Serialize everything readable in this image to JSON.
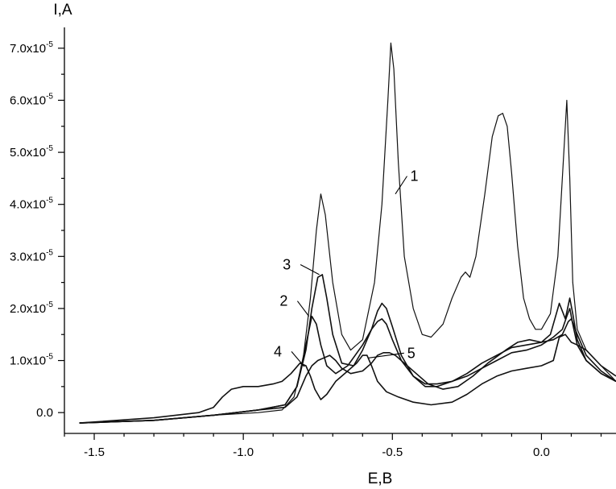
{
  "chart_data": {
    "type": "line",
    "xlabel": "E,B",
    "ylabel": "I,A",
    "xlim": [
      -1.6,
      0.25
    ],
    "ylim": [
      -0.4,
      7.4
    ],
    "y_multiplier_note": "x10^-5",
    "x_ticks": [
      {
        "value": -1.5,
        "label": "-1.5"
      },
      {
        "value": -1.0,
        "label": "-1.0"
      },
      {
        "value": -0.5,
        "label": "-0.5"
      },
      {
        "value": 0.0,
        "label": "0.0"
      }
    ],
    "y_ticks": [
      {
        "value": 0,
        "mant": "0.0",
        "exp": ""
      },
      {
        "value": 1,
        "mant": "1.0x10",
        "exp": "-5"
      },
      {
        "value": 2,
        "mant": "2.0x10",
        "exp": "-5"
      },
      {
        "value": 3,
        "mant": "3.0x10",
        "exp": "-5"
      },
      {
        "value": 4,
        "mant": "4.0x10",
        "exp": "-5"
      },
      {
        "value": 5,
        "mant": "5.0x10",
        "exp": "-5"
      },
      {
        "value": 6,
        "mant": "6.0x10",
        "exp": "-5"
      },
      {
        "value": 7,
        "mant": "7.0x10",
        "exp": "-5"
      }
    ],
    "series": [
      {
        "name": "1",
        "x": [
          -1.55,
          -1.3,
          -1.1,
          -0.95,
          -0.87,
          -0.83,
          -0.8,
          -0.775,
          -0.755,
          -0.74,
          -0.725,
          -0.7,
          -0.67,
          -0.64,
          -0.6,
          -0.56,
          -0.535,
          -0.515,
          -0.505,
          -0.495,
          -0.48,
          -0.46,
          -0.43,
          -0.4,
          -0.37,
          -0.33,
          -0.3,
          -0.27,
          -0.255,
          -0.24,
          -0.22,
          -0.19,
          -0.165,
          -0.145,
          -0.13,
          -0.115,
          -0.1,
          -0.08,
          -0.06,
          -0.04,
          -0.02,
          0.0,
          0.03,
          0.055,
          0.075,
          0.085,
          0.095,
          0.105,
          0.12,
          0.15,
          0.2,
          0.25
        ],
        "y": [
          -0.2,
          -0.15,
          -0.05,
          0.0,
          0.05,
          0.3,
          1.0,
          2.2,
          3.5,
          4.2,
          3.8,
          2.5,
          1.5,
          1.2,
          1.4,
          2.5,
          4.0,
          6.0,
          7.1,
          6.6,
          4.8,
          3.0,
          2.0,
          1.5,
          1.45,
          1.7,
          2.2,
          2.6,
          2.7,
          2.6,
          3.0,
          4.2,
          5.3,
          5.7,
          5.75,
          5.5,
          4.6,
          3.2,
          2.2,
          1.8,
          1.6,
          1.6,
          1.9,
          3.0,
          5.0,
          6.0,
          4.5,
          2.5,
          1.6,
          1.2,
          0.9,
          0.6
        ]
      },
      {
        "name": "2",
        "x": [
          -1.55,
          -1.3,
          -1.1,
          -0.95,
          -0.86,
          -0.82,
          -0.79,
          -0.77,
          -0.755,
          -0.74,
          -0.72,
          -0.69,
          -0.65,
          -0.6,
          -0.57,
          -0.55,
          -0.535,
          -0.52,
          -0.5,
          -0.47,
          -0.43,
          -0.39,
          -0.35,
          -0.3,
          -0.25,
          -0.2,
          -0.15,
          -0.1,
          -0.05,
          0.0,
          0.04,
          0.07,
          0.085,
          0.095,
          0.105,
          0.12,
          0.15,
          0.2,
          0.25
        ],
        "y": [
          -0.2,
          -0.15,
          -0.05,
          0.05,
          0.15,
          0.5,
          1.3,
          1.85,
          1.7,
          1.3,
          0.9,
          0.75,
          0.9,
          1.3,
          1.6,
          1.75,
          1.8,
          1.7,
          1.4,
          1.0,
          0.7,
          0.55,
          0.55,
          0.6,
          0.7,
          0.85,
          1.0,
          1.15,
          1.2,
          1.3,
          1.45,
          1.6,
          1.85,
          2.0,
          1.7,
          1.3,
          1.0,
          0.75,
          0.6
        ]
      },
      {
        "name": "3",
        "x": [
          -1.55,
          -1.3,
          -1.1,
          -0.95,
          -0.86,
          -0.82,
          -0.79,
          -0.77,
          -0.75,
          -0.735,
          -0.72,
          -0.7,
          -0.67,
          -0.63,
          -0.6,
          -0.57,
          -0.55,
          -0.535,
          -0.52,
          -0.5,
          -0.47,
          -0.43,
          -0.39,
          -0.35,
          -0.3,
          -0.25,
          -0.2,
          -0.15,
          -0.1,
          -0.05,
          0.0,
          0.03,
          0.06,
          0.08,
          0.095,
          0.105,
          0.12,
          0.15,
          0.2,
          0.25
        ],
        "y": [
          -0.2,
          -0.15,
          -0.05,
          0.05,
          0.15,
          0.5,
          1.2,
          2.0,
          2.6,
          2.65,
          2.2,
          1.5,
          0.95,
          0.9,
          1.2,
          1.6,
          1.95,
          2.1,
          2.0,
          1.65,
          1.1,
          0.7,
          0.5,
          0.5,
          0.6,
          0.75,
          0.95,
          1.1,
          1.25,
          1.3,
          1.35,
          1.5,
          2.1,
          1.8,
          2.2,
          1.9,
          1.4,
          1.0,
          0.75,
          0.6
        ]
      },
      {
        "name": "4",
        "x": [
          -1.55,
          -1.3,
          -1.15,
          -1.1,
          -1.07,
          -1.04,
          -1.0,
          -0.95,
          -0.9,
          -0.87,
          -0.84,
          -0.81,
          -0.79,
          -0.775,
          -0.76,
          -0.74,
          -0.72,
          -0.69,
          -0.65,
          -0.62,
          -0.6,
          -0.585,
          -0.57,
          -0.55,
          -0.52,
          -0.48,
          -0.43,
          -0.37,
          -0.3,
          -0.25,
          -0.2,
          -0.15,
          -0.1,
          -0.05,
          0.0,
          0.04,
          0.06,
          0.08,
          0.1,
          0.12,
          0.15,
          0.2,
          0.25
        ],
        "y": [
          -0.2,
          -0.1,
          0.0,
          0.1,
          0.3,
          0.45,
          0.5,
          0.5,
          0.55,
          0.6,
          0.75,
          0.95,
          0.9,
          0.7,
          0.45,
          0.25,
          0.35,
          0.6,
          0.8,
          0.95,
          1.1,
          1.1,
          0.9,
          0.6,
          0.4,
          0.3,
          0.2,
          0.15,
          0.2,
          0.35,
          0.55,
          0.7,
          0.8,
          0.85,
          0.9,
          1.0,
          1.45,
          1.5,
          1.35,
          1.3,
          1.2,
          0.9,
          0.7
        ]
      },
      {
        "name": "5",
        "x": [
          -1.55,
          -1.3,
          -1.1,
          -0.95,
          -0.86,
          -0.82,
          -0.79,
          -0.77,
          -0.75,
          -0.73,
          -0.71,
          -0.69,
          -0.67,
          -0.64,
          -0.6,
          -0.57,
          -0.55,
          -0.53,
          -0.51,
          -0.49,
          -0.46,
          -0.42,
          -0.38,
          -0.33,
          -0.28,
          -0.23,
          -0.18,
          -0.12,
          -0.08,
          -0.04,
          0.0,
          0.04,
          0.07,
          0.09,
          0.1,
          0.12,
          0.15,
          0.2,
          0.25
        ],
        "y": [
          -0.2,
          -0.15,
          -0.05,
          0.05,
          0.1,
          0.3,
          0.7,
          0.9,
          1.0,
          1.05,
          1.1,
          1.0,
          0.85,
          0.75,
          0.8,
          0.95,
          1.1,
          1.15,
          1.15,
          1.1,
          0.95,
          0.75,
          0.55,
          0.45,
          0.5,
          0.7,
          0.95,
          1.2,
          1.35,
          1.4,
          1.35,
          1.4,
          1.5,
          1.75,
          1.8,
          1.5,
          1.1,
          0.8,
          0.6
        ]
      }
    ],
    "annotations": [
      {
        "label": "1",
        "point": [
          -0.49,
          4.2
        ],
        "text_at": [
          -0.44,
          4.45
        ]
      },
      {
        "label": "3",
        "point": [
          -0.745,
          2.65
        ],
        "text_at": [
          -0.83,
          2.75
        ]
      },
      {
        "label": "2",
        "point": [
          -0.78,
          1.85
        ],
        "text_at": [
          -0.84,
          2.05
        ]
      },
      {
        "label": "4",
        "point": [
          -0.795,
          0.88
        ],
        "text_at": [
          -0.86,
          1.08
        ]
      },
      {
        "label": "5",
        "point": [
          -0.58,
          1.05
        ],
        "text_at": [
          -0.45,
          1.05
        ]
      }
    ]
  }
}
